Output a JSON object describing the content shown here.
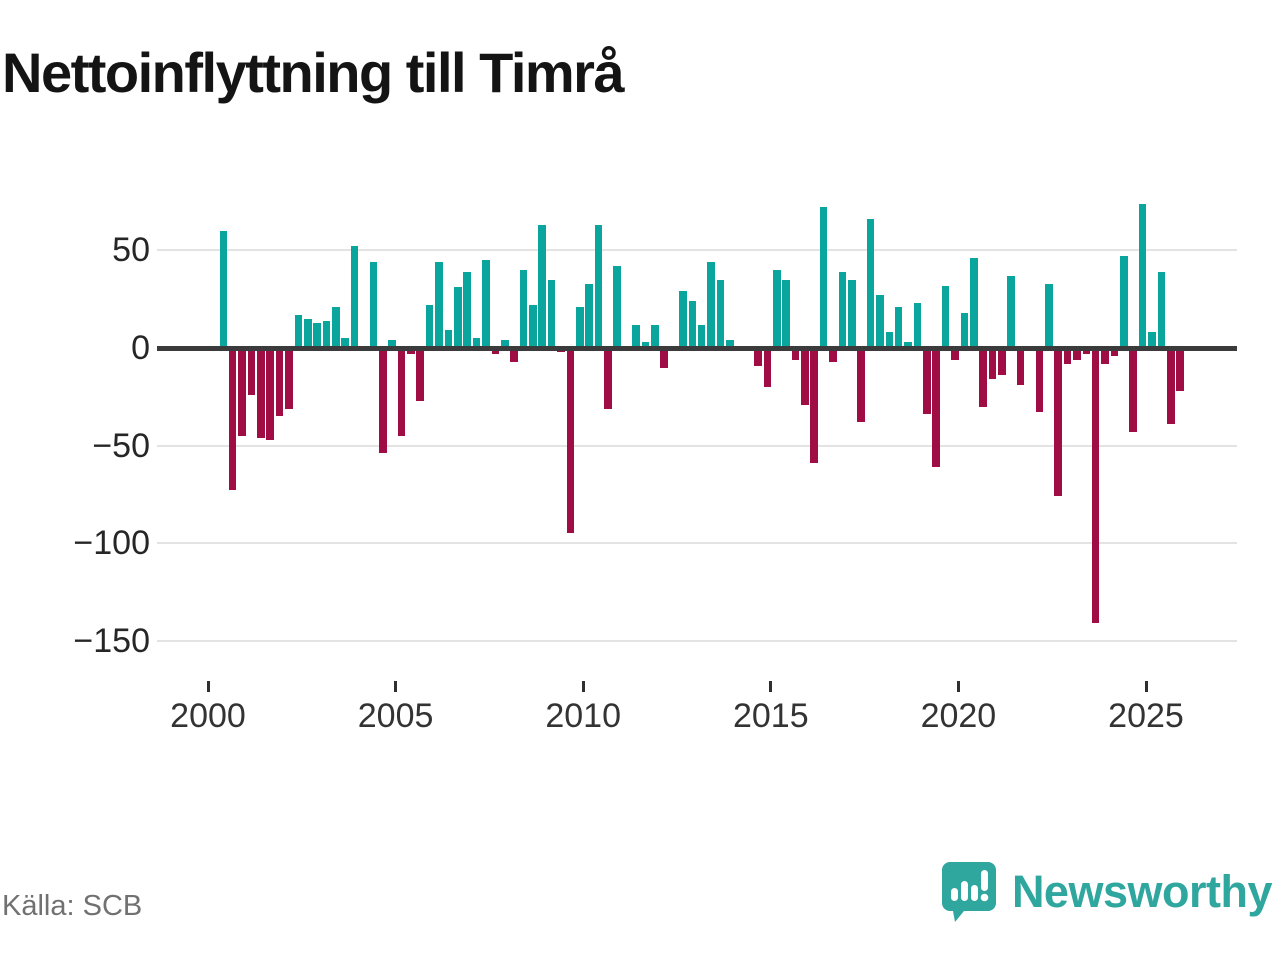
{
  "title": "Nettoinflyttning till Timrå",
  "source": "Källa: SCB",
  "branding": {
    "name": "Newsworthy",
    "icon": "newsworthy-logo-icon",
    "color": "#2fa69e"
  },
  "chart_data": {
    "type": "bar",
    "title": "Nettoinflyttning till Timrå",
    "xlabel": "",
    "ylabel": "",
    "grid": "horizontal",
    "legend": "none",
    "positive_color": "#0aa69d",
    "negative_color": "#a00d45",
    "y_ticks": [
      50,
      0,
      -50,
      -100,
      -150
    ],
    "y_tick_labels": [
      "50",
      "0",
      "−50",
      "−100",
      "−150"
    ],
    "x_tick_labels": [
      "2000",
      "2005",
      "2010",
      "2015",
      "2020",
      "2025"
    ],
    "ylim": [
      -163,
      84
    ],
    "categories": [
      "2000-K2",
      "2000-K3",
      "2000-K4",
      "2001-K1",
      "2001-K2",
      "2001-K3",
      "2001-K4",
      "2002-K1",
      "2002-K2",
      "2002-K3",
      "2002-K4",
      "2003-K1",
      "2003-K2",
      "2003-K3",
      "2003-K4",
      "2004-K1",
      "2004-K2",
      "2004-K3",
      "2004-K4",
      "2005-K1",
      "2005-K2",
      "2005-K3",
      "2005-K4",
      "2006-K1",
      "2006-K2",
      "2006-K3",
      "2006-K4",
      "2007-K1",
      "2007-K2",
      "2007-K3",
      "2007-K4",
      "2008-K1",
      "2008-K2",
      "2008-K3",
      "2008-K4",
      "2009-K1",
      "2009-K2",
      "2009-K3",
      "2009-K4",
      "2010-K1",
      "2010-K2",
      "2010-K3",
      "2010-K4",
      "2011-K1",
      "2011-K2",
      "2011-K3",
      "2011-K4",
      "2012-K1",
      "2012-K2",
      "2012-K3",
      "2012-K4",
      "2013-K1",
      "2013-K2",
      "2013-K3",
      "2013-K4",
      "2014-K1",
      "2014-K2",
      "2014-K3",
      "2014-K4",
      "2015-K1",
      "2015-K2",
      "2015-K3",
      "2015-K4",
      "2016-K1",
      "2016-K2",
      "2016-K3",
      "2016-K4",
      "2017-K1",
      "2017-K2",
      "2017-K3",
      "2017-K4",
      "2018-K1",
      "2018-K2",
      "2018-K3",
      "2018-K4",
      "2019-K1",
      "2019-K2",
      "2019-K3",
      "2019-K4",
      "2020-K1",
      "2020-K2",
      "2020-K3",
      "2020-K4",
      "2021-K1",
      "2021-K2",
      "2021-K3",
      "2021-K4",
      "2022-K1",
      "2022-K2",
      "2022-K3",
      "2022-K4",
      "2023-K1",
      "2023-K2",
      "2023-K3",
      "2023-K4",
      "2024-K1",
      "2024-K2",
      "2024-K3",
      "2024-K4",
      "2025-K1",
      "2025-K2",
      "2025-K3",
      "2025-K4"
    ],
    "values": [
      60,
      -73,
      -45,
      -24,
      -46,
      -47,
      -35,
      -31,
      17,
      15,
      13,
      14,
      21,
      5,
      52,
      0,
      44,
      -54,
      4,
      -45,
      -3,
      -27,
      22,
      44,
      9,
      31,
      39,
      5,
      45,
      -3,
      4,
      -7,
      40,
      22,
      63,
      35,
      -2,
      -95,
      21,
      33,
      63,
      -31,
      42,
      0,
      12,
      3,
      12,
      -10,
      0,
      29,
      24,
      12,
      44,
      35,
      4,
      0,
      0,
      -9,
      -20,
      40,
      35,
      -6,
      -29,
      -59,
      72,
      -7,
      39,
      35,
      -38,
      66,
      27,
      8,
      21,
      3,
      23,
      -34,
      -61,
      32,
      -6,
      18,
      46,
      -30,
      -16,
      -14,
      37,
      -19,
      0,
      -33,
      33,
      -76,
      -8,
      -6,
      -3,
      -141,
      -8,
      -4,
      47,
      -43,
      74,
      8,
      39,
      -39,
      -22
    ]
  }
}
